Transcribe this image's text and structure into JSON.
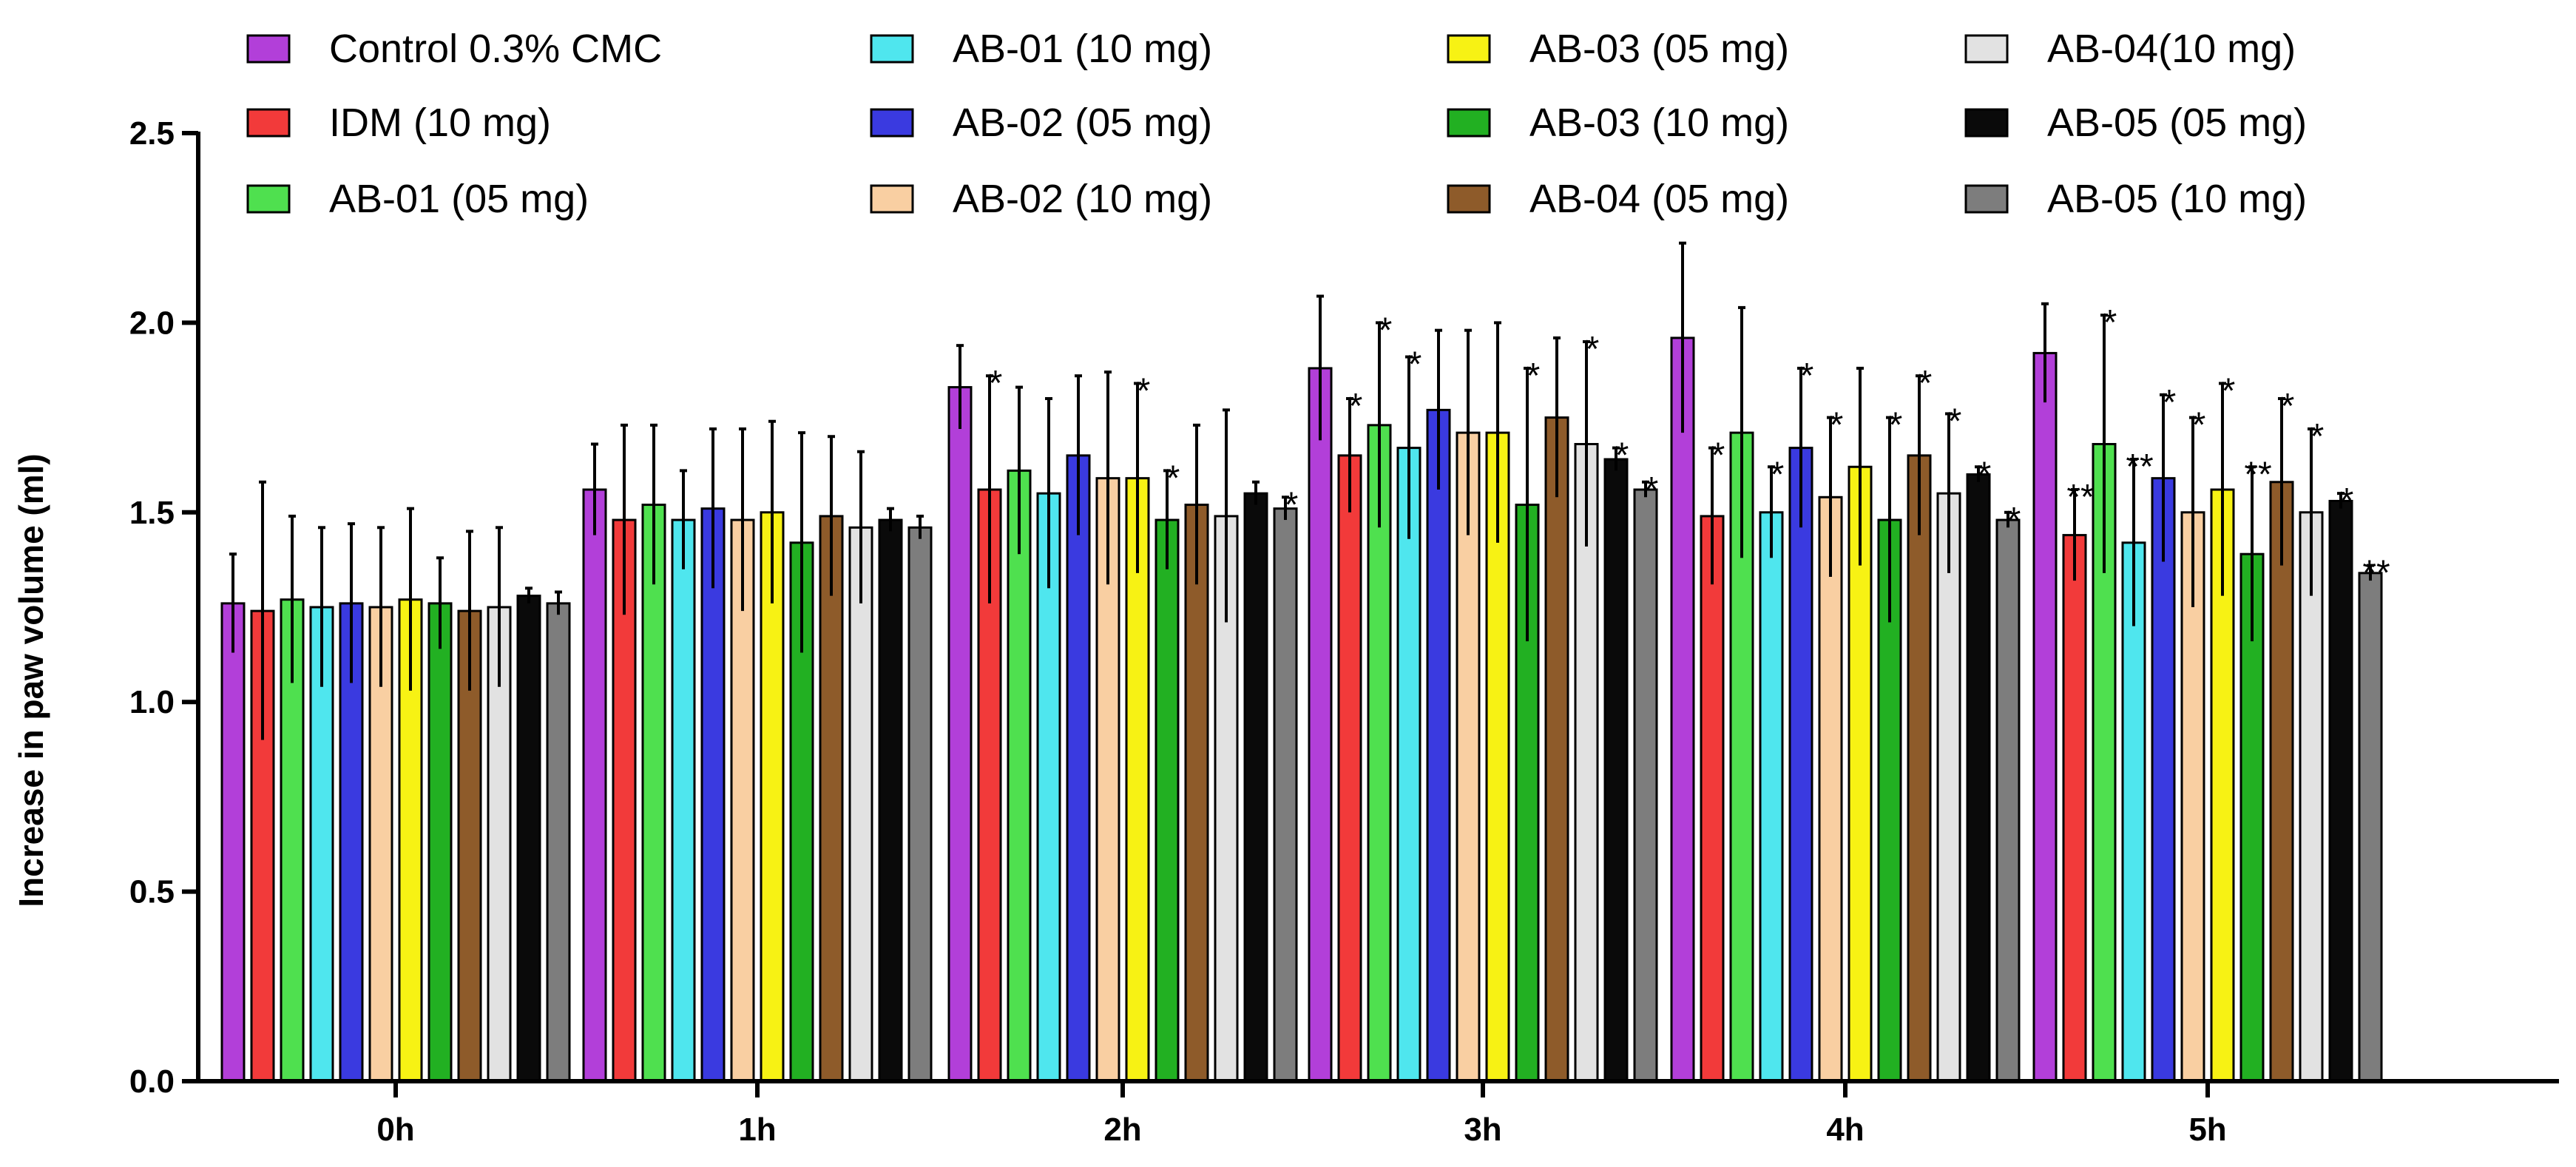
{
  "chart_data": {
    "type": "bar",
    "title": "",
    "xlabel": "",
    "ylabel": "Increase in paw volume (ml)",
    "ylim": [
      0,
      2.5
    ],
    "yticks": [
      "0.0",
      "0.5",
      "1.0",
      "1.5",
      "2.0",
      "2.5"
    ],
    "ytick_values": [
      0,
      0.5,
      1.0,
      1.5,
      2.0,
      2.5
    ],
    "grid": false,
    "legend_position": "top",
    "categories": [
      "0h",
      "1h",
      "2h",
      "3h",
      "4h",
      "5h"
    ],
    "series": [
      {
        "name": "Control  0.3% CMC",
        "color": "#B23FD9",
        "values": [
          1.26,
          1.56,
          1.83,
          1.88,
          1.96,
          1.92
        ],
        "errors": [
          0.13,
          0.12,
          0.11,
          0.19,
          0.25,
          0.13
        ],
        "sig": [
          "",
          "",
          "",
          "",
          "",
          ""
        ]
      },
      {
        "name": "IDM (10 mg)",
        "color": "#F23A3A",
        "values": [
          1.24,
          1.48,
          1.56,
          1.65,
          1.49,
          1.44
        ],
        "errors": [
          0.34,
          0.25,
          0.3,
          0.15,
          0.18,
          0.12
        ],
        "sig": [
          "",
          "",
          "*",
          "*",
          "*",
          "**"
        ]
      },
      {
        "name": "AB-01 (05 mg)",
        "color": "#4FE04F",
        "values": [
          1.27,
          1.52,
          1.61,
          1.73,
          1.71,
          1.68
        ],
        "errors": [
          0.22,
          0.21,
          0.22,
          0.27,
          0.33,
          0.34
        ],
        "sig": [
          "",
          "",
          "",
          "*",
          "",
          "*"
        ]
      },
      {
        "name": "AB-01 (10 mg)",
        "color": "#4FE6EE",
        "values": [
          1.25,
          1.48,
          1.55,
          1.67,
          1.5,
          1.42
        ],
        "errors": [
          0.21,
          0.13,
          0.25,
          0.24,
          0.12,
          0.22
        ],
        "sig": [
          "",
          "",
          "",
          "*",
          "*",
          "**"
        ]
      },
      {
        "name": "AB-02 (05 mg)",
        "color": "#3A3AE0",
        "values": [
          1.26,
          1.51,
          1.65,
          1.77,
          1.67,
          1.59
        ],
        "errors": [
          0.21,
          0.21,
          0.21,
          0.21,
          0.21,
          0.22
        ],
        "sig": [
          "",
          "",
          "",
          "",
          "*",
          "*"
        ]
      },
      {
        "name": "AB-02 (10 mg)",
        "color": "#F9CFA2",
        "values": [
          1.25,
          1.48,
          1.59,
          1.71,
          1.54,
          1.5
        ],
        "errors": [
          0.21,
          0.24,
          0.28,
          0.27,
          0.21,
          0.25
        ],
        "sig": [
          "",
          "",
          "",
          "",
          "*",
          "*"
        ]
      },
      {
        "name": "AB-03 (05 mg)",
        "color": "#F7F214",
        "values": [
          1.27,
          1.5,
          1.59,
          1.71,
          1.62,
          1.56
        ],
        "errors": [
          0.24,
          0.24,
          0.25,
          0.29,
          0.26,
          0.28
        ],
        "sig": [
          "",
          "",
          "*",
          "",
          "",
          "*"
        ]
      },
      {
        "name": "AB-03 (10 mg)",
        "color": "#22B022",
        "values": [
          1.26,
          1.42,
          1.48,
          1.52,
          1.48,
          1.39
        ],
        "errors": [
          0.12,
          0.29,
          0.13,
          0.36,
          0.27,
          0.23
        ],
        "sig": [
          "",
          "",
          "*",
          "*",
          "*",
          "**"
        ]
      },
      {
        "name": "AB-04 (05 mg)",
        "color": "#8E5B2A",
        "values": [
          1.24,
          1.49,
          1.52,
          1.75,
          1.65,
          1.58
        ],
        "errors": [
          0.21,
          0.21,
          0.21,
          0.21,
          0.21,
          0.22
        ],
        "sig": [
          "",
          "",
          "",
          "",
          "*",
          "*"
        ]
      },
      {
        "name": "AB-04(10 mg)",
        "color": "#E2E2E2",
        "values": [
          1.25,
          1.46,
          1.49,
          1.68,
          1.55,
          1.5
        ],
        "errors": [
          0.21,
          0.2,
          0.28,
          0.27,
          0.21,
          0.22
        ],
        "sig": [
          "",
          "",
          "",
          "*",
          "*",
          "*"
        ]
      },
      {
        "name": "AB-05 (05 mg)",
        "color": "#0A0A0A",
        "values": [
          1.28,
          1.48,
          1.55,
          1.64,
          1.6,
          1.53
        ],
        "errors": [
          0.02,
          0.03,
          0.03,
          0.03,
          0.02,
          0.02
        ],
        "sig": [
          "",
          "",
          "",
          "*",
          "*",
          "*"
        ]
      },
      {
        "name": "AB-05 (10 mg)",
        "color": "#7D7D7D",
        "values": [
          1.26,
          1.46,
          1.51,
          1.56,
          1.48,
          1.34
        ],
        "errors": [
          0.03,
          0.03,
          0.03,
          0.02,
          0.02,
          0.02
        ],
        "sig": [
          "",
          "",
          "*",
          "*",
          "*",
          "**"
        ]
      }
    ]
  }
}
